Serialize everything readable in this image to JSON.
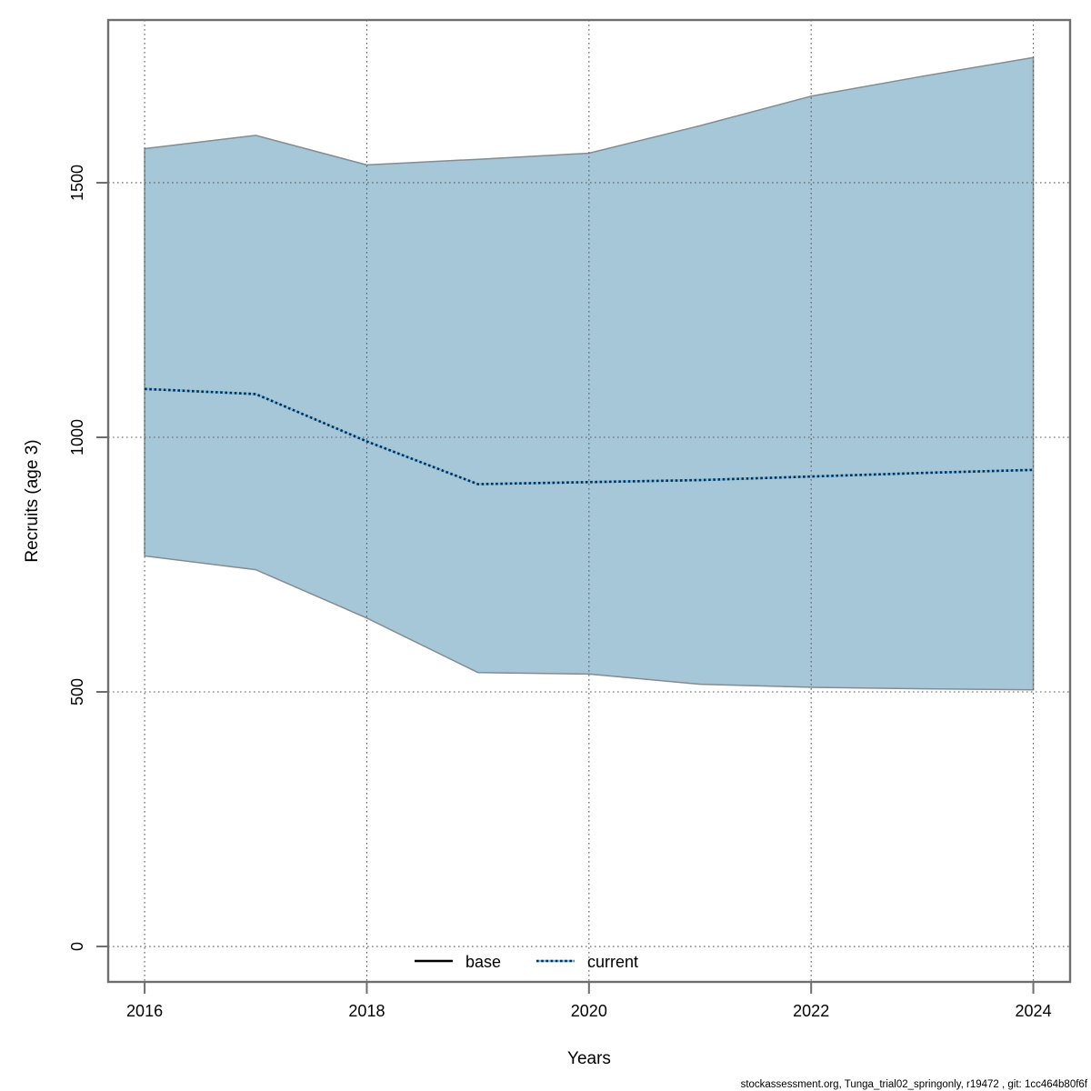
{
  "footer": {
    "text": "stockassessment.org, Tunga_trial02_springonly, r19472 , git: 1cc464b80f6f"
  },
  "chart_data": {
    "type": "area",
    "title": "",
    "xlabel": "Years",
    "ylabel": "Recruits (age 3)",
    "x": [
      2016,
      2017,
      2018,
      2019,
      2020,
      2021,
      2022,
      2023,
      2024
    ],
    "band_upper": [
      1567,
      1593,
      1535,
      1546,
      1558,
      1612,
      1670,
      1709,
      1746
    ],
    "band_lower": [
      767,
      740,
      645,
      538,
      535,
      515,
      509,
      506,
      504
    ],
    "series": [
      {
        "name": "current",
        "line_style": "dotted",
        "values": [
          1095,
          1085,
          992,
          908,
          912,
          916,
          923,
          930,
          936
        ]
      }
    ],
    "legend": {
      "position": "bottom-center-inside",
      "items": [
        {
          "label": "base",
          "line_style": "solid",
          "color": "#000000"
        },
        {
          "label": "current",
          "line_style": "dotted",
          "color": "#0f2b4a"
        }
      ]
    },
    "x_ticks": [
      2016,
      2018,
      2020,
      2022,
      2024
    ],
    "y_ticks": [
      0,
      500,
      1000,
      1500
    ],
    "xlim": [
      2015.672,
      2024.331
    ],
    "ylim": [
      -69.6,
      1819.6
    ],
    "grid": "dotted",
    "colors": {
      "band_fill": "#a6c7d8",
      "band_edge": "#848c91",
      "grid": "#555b60",
      "axis": "#6e6e6e",
      "current_line": "#0f2b4a",
      "current_halo": "#7cc0e8",
      "text": "#000000"
    }
  }
}
